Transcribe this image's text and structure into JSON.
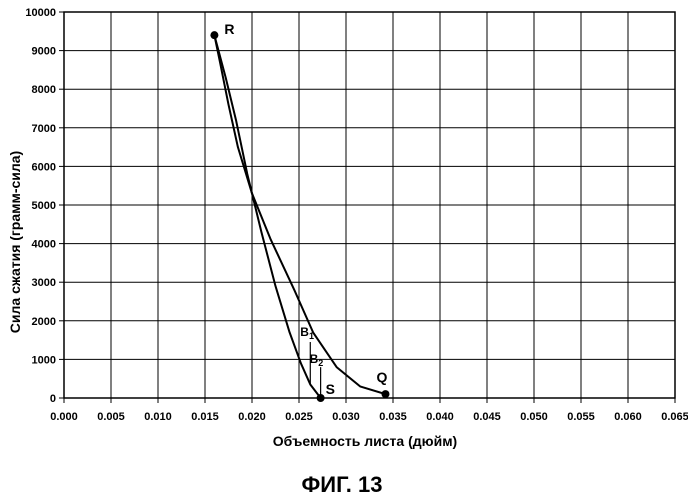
{
  "chart_data": {
    "type": "line",
    "xlabel": "Объемность листа (дюйм)",
    "ylabel": "Сила сжатия  (грамм-сила)",
    "xlim": [
      0,
      0.065
    ],
    "ylim": [
      0,
      10000
    ],
    "xticks": [
      "0.000",
      "0.005",
      "0.010",
      "0.015",
      "0.020",
      "0.025",
      "0.030",
      "0.035",
      "0.040",
      "0.045",
      "0.050",
      "0.055",
      "0.060",
      "0.065"
    ],
    "yticks": [
      "0",
      "1000",
      "2000",
      "3000",
      "4000",
      "5000",
      "6000",
      "7000",
      "8000",
      "9000",
      "10000"
    ],
    "grid": true,
    "series": [
      {
        "values": [
          {
            "x": 0.016,
            "y": 9400
          },
          {
            "x": 0.0166,
            "y": 8700
          },
          {
            "x": 0.0175,
            "y": 7600
          },
          {
            "x": 0.0185,
            "y": 6500
          },
          {
            "x": 0.02,
            "y": 5300
          },
          {
            "x": 0.022,
            "y": 4100
          },
          {
            "x": 0.0245,
            "y": 2800
          },
          {
            "x": 0.0265,
            "y": 1700
          },
          {
            "x": 0.029,
            "y": 800
          },
          {
            "x": 0.0315,
            "y": 300
          },
          {
            "x": 0.0342,
            "y": 100
          }
        ]
      },
      {
        "values": [
          {
            "x": 0.016,
            "y": 9400
          },
          {
            "x": 0.0172,
            "y": 8300
          },
          {
            "x": 0.0183,
            "y": 7200
          },
          {
            "x": 0.0195,
            "y": 5800
          },
          {
            "x": 0.021,
            "y": 4300
          },
          {
            "x": 0.0225,
            "y": 2900
          },
          {
            "x": 0.024,
            "y": 1700
          },
          {
            "x": 0.0252,
            "y": 900
          },
          {
            "x": 0.0262,
            "y": 350
          },
          {
            "x": 0.0273,
            "y": 0
          }
        ]
      }
    ],
    "points": [
      {
        "label": "R",
        "x": 0.016,
        "y": 9400
      },
      {
        "label": "S",
        "x": 0.0273,
        "y": 0
      },
      {
        "label": "Q",
        "x": 0.0342,
        "y": 100
      }
    ],
    "markers": [
      {
        "label": "B",
        "sub": "1",
        "x": 0.0262,
        "y0": 350,
        "y1": 1450
      },
      {
        "label": "B",
        "sub": "2",
        "x": 0.0273,
        "y0": 0,
        "y1": 800
      }
    ]
  },
  "caption": "ФИГ. 13"
}
